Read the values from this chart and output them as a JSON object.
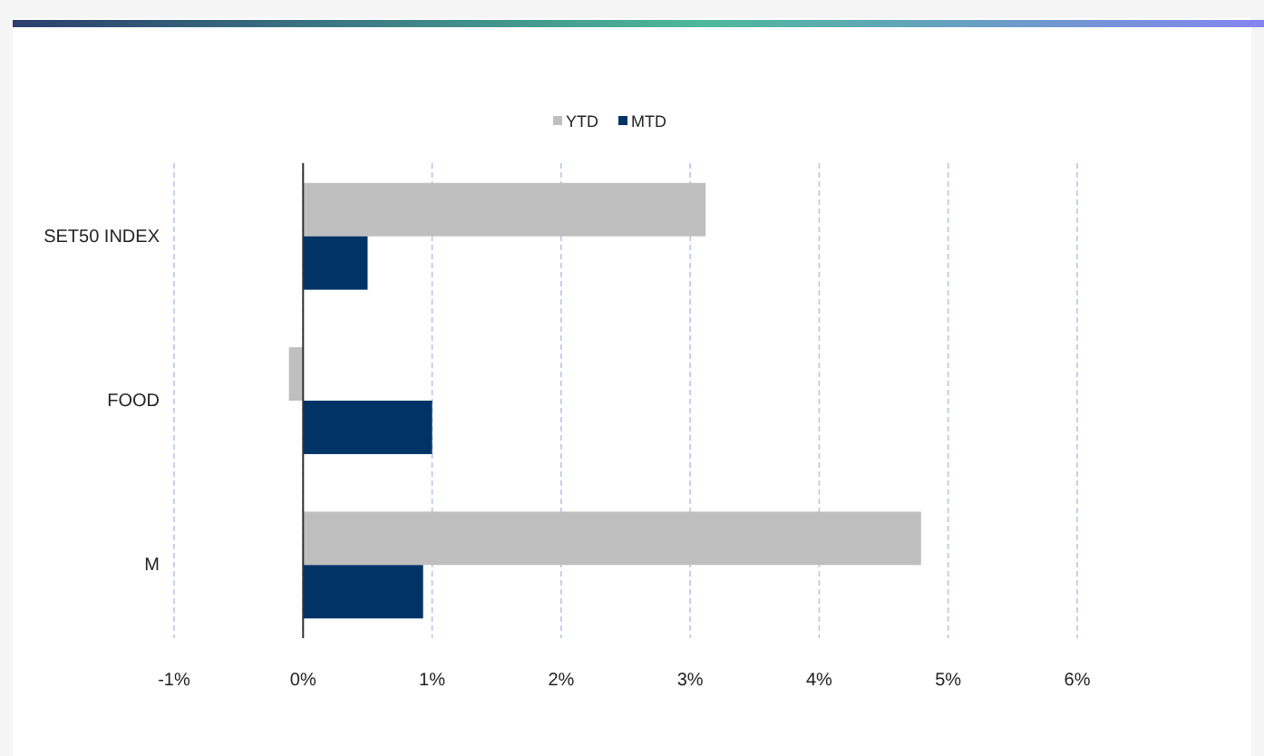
{
  "chart_data": {
    "type": "bar",
    "orientation": "horizontal",
    "categories": [
      "SET50 INDEX",
      "FOOD",
      "M"
    ],
    "series": [
      {
        "name": "YTD",
        "color": "#bfbfbf",
        "values": [
          3.12,
          -0.11,
          4.79
        ]
      },
      {
        "name": "MTD",
        "color": "#003366",
        "values": [
          0.5,
          1.0,
          0.93
        ]
      }
    ],
    "xlim": [
      -1,
      6
    ],
    "xticks": [
      {
        "value": -1,
        "label": "-1%"
      },
      {
        "value": 0,
        "label": "0%"
      },
      {
        "value": 1,
        "label": "1%"
      },
      {
        "value": 2,
        "label": "2%"
      },
      {
        "value": 3,
        "label": "3%"
      },
      {
        "value": 4,
        "label": "4%"
      },
      {
        "value": 5,
        "label": "5%"
      },
      {
        "value": 6,
        "label": "6%"
      }
    ],
    "grid": "x",
    "legend": "top"
  }
}
